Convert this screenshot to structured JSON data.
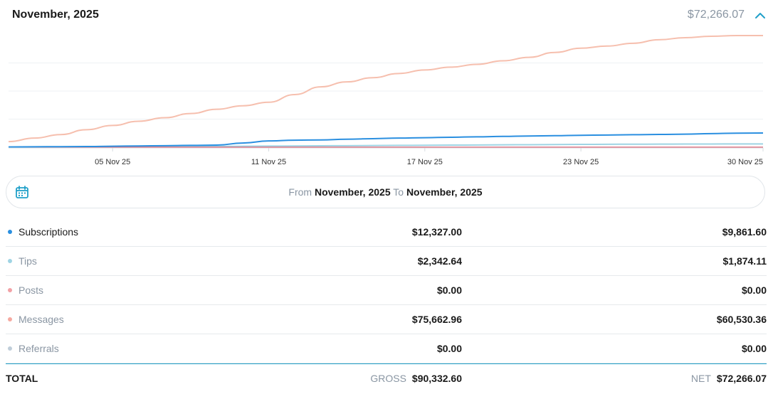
{
  "header": {
    "month_title": "November, 2025",
    "total": "$72,266.07"
  },
  "date_range": {
    "from_label": "From",
    "from_value": "November, 2025",
    "to_label": "To",
    "to_value": "November, 2025"
  },
  "rows": [
    {
      "name": "Subscriptions",
      "gross": "$12,327.00",
      "net": "$9,861.60",
      "dot_color": "#2a8fe0",
      "name_color": "#1a1a1a"
    },
    {
      "name": "Tips",
      "gross": "$2,342.64",
      "net": "$1,874.11",
      "dot_color": "#9fd4e4",
      "name_color": "#8a96a3"
    },
    {
      "name": "Posts",
      "gross": "$0.00",
      "net": "$0.00",
      "dot_color": "#f2a1a6",
      "name_color": "#8a96a3"
    },
    {
      "name": "Messages",
      "gross": "$75,662.96",
      "net": "$60,530.36",
      "dot_color": "#f5a9a0",
      "name_color": "#8a96a3"
    },
    {
      "name": "Referrals",
      "gross": "$0.00",
      "net": "$0.00",
      "dot_color": "#bfcdd9",
      "name_color": "#8a96a3"
    }
  ],
  "total": {
    "label": "TOTAL",
    "gross_label": "GROSS",
    "gross_value": "$90,332.60",
    "net_label": "NET",
    "net_value": "$72,266.07"
  },
  "colors": {
    "accent": "#21a0c9",
    "subscriptions": "#2a8fe0",
    "tips": "#9fd4e4",
    "posts": "#e36b7a",
    "messages": "#f6bfae",
    "referrals": "#bfcdd9"
  },
  "chart_data": {
    "type": "line",
    "x": [
      "01 Nov 25",
      "02 Nov 25",
      "03 Nov 25",
      "04 Nov 25",
      "05 Nov 25",
      "06 Nov 25",
      "07 Nov 25",
      "08 Nov 25",
      "09 Nov 25",
      "10 Nov 25",
      "11 Nov 25",
      "12 Nov 25",
      "13 Nov 25",
      "14 Nov 25",
      "15 Nov 25",
      "16 Nov 25",
      "17 Nov 25",
      "18 Nov 25",
      "19 Nov 25",
      "20 Nov 25",
      "21 Nov 25",
      "22 Nov 25",
      "23 Nov 25",
      "24 Nov 25",
      "25 Nov 25",
      "26 Nov 25",
      "27 Nov 25",
      "28 Nov 25",
      "29 Nov 25",
      "30 Nov 25"
    ],
    "tick_labels": [
      "05 Nov 25",
      "11 Nov 25",
      "17 Nov 25",
      "23 Nov 25",
      "30 Nov 25"
    ],
    "ylim": [
      0,
      80000
    ],
    "grid": true,
    "series": [
      {
        "key": "messages",
        "values": [
          4000,
          6500,
          9000,
          12500,
          15500,
          18500,
          21000,
          24000,
          27000,
          29500,
          32000,
          37500,
          43000,
          46500,
          49500,
          52500,
          55000,
          57000,
          59000,
          61500,
          64000,
          67500,
          70500,
          72000,
          74000,
          76500,
          78000,
          79000,
          79500,
          79500
        ]
      },
      {
        "key": "subscriptions",
        "values": [
          200,
          300,
          400,
          500,
          700,
          900,
          1100,
          1300,
          1500,
          3000,
          4500,
          5000,
          5200,
          5700,
          6100,
          6500,
          6800,
          7100,
          7400,
          7700,
          8000,
          8200,
          8500,
          8700,
          8900,
          9100,
          9300,
          9700,
          10000,
          10100
        ]
      },
      {
        "key": "tips",
        "values": [
          0,
          50,
          100,
          150,
          200,
          300,
          400,
          500,
          600,
          700,
          800,
          900,
          1000,
          1100,
          1200,
          1300,
          1400,
          1500,
          1600,
          1700,
          1800,
          1900,
          2000,
          2100,
          2150,
          2200,
          2250,
          2300,
          2340,
          2340
        ]
      },
      {
        "key": "referrals",
        "values": [
          0,
          0,
          0,
          0,
          0,
          0,
          0,
          0,
          0,
          0,
          0,
          0,
          0,
          0,
          0,
          0,
          0,
          0,
          0,
          0,
          0,
          0,
          0,
          0,
          0,
          0,
          0,
          0,
          0,
          0
        ]
      },
      {
        "key": "posts",
        "values": [
          0,
          0,
          0,
          0,
          0,
          0,
          0,
          0,
          0,
          0,
          0,
          0,
          0,
          0,
          0,
          0,
          0,
          0,
          0,
          0,
          0,
          0,
          0,
          0,
          0,
          0,
          0,
          0,
          0,
          0
        ]
      }
    ]
  }
}
